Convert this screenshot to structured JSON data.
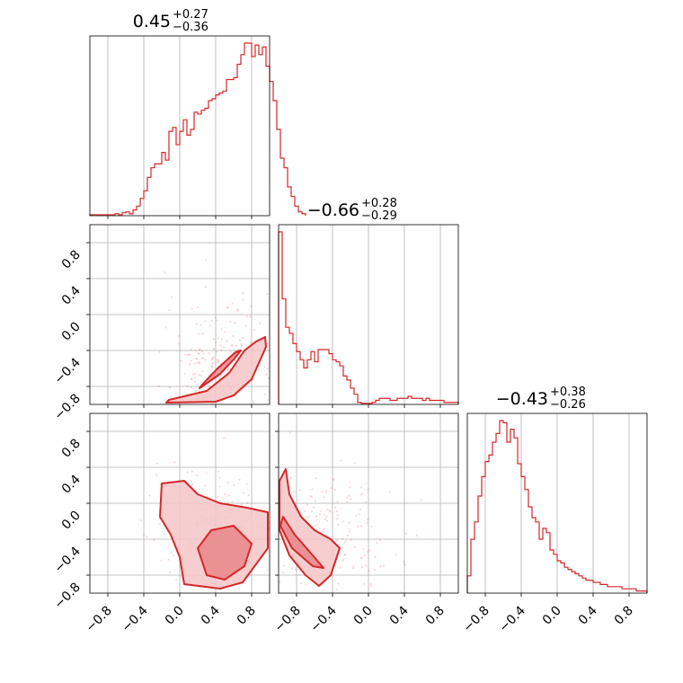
{
  "chart_data": {
    "type": "corner",
    "color": "#d62728",
    "grid": true,
    "axis_range": [
      -1.0,
      1.0
    ],
    "ticks": [
      -0.8,
      -0.4,
      0.0,
      0.4,
      0.8
    ],
    "tick_labels": [
      "−0.8",
      "−0.4",
      "0.0",
      "0.4",
      "0.8"
    ],
    "parameters": [
      {
        "title_value": "0.45",
        "title_plus": "+0.27",
        "title_minus": "−0.36",
        "histogram": {
          "bin_start": -1.0,
          "bin_width": 0.04,
          "counts": [
            0.5,
            0.5,
            0.5,
            0.5,
            0.5,
            0.5,
            0.5,
            1,
            0.5,
            1.5,
            2,
            1,
            3,
            5,
            9,
            13,
            20,
            25,
            27,
            27,
            33,
            29,
            44,
            46,
            37,
            44,
            50,
            42,
            45,
            54,
            53,
            55,
            56,
            60,
            61,
            63,
            64,
            65,
            71,
            71,
            72,
            79,
            84,
            90,
            90,
            83,
            89,
            84,
            88,
            78,
            70,
            60,
            45,
            30,
            25,
            15,
            10,
            5,
            2,
            1
          ]
        }
      },
      {
        "title_value": "−0.66",
        "title_plus": "+0.28",
        "title_minus": "−0.29",
        "histogram": {
          "bin_start": -1.0,
          "bin_width": 0.04,
          "counts": [
            85,
            52,
            38,
            35,
            30,
            26,
            22,
            18,
            22,
            26,
            21,
            27,
            27,
            27,
            25,
            22,
            21,
            19,
            14,
            12,
            8,
            5,
            1,
            0.5,
            0.5,
            0.5,
            1,
            2,
            3,
            3,
            3,
            2,
            2,
            3,
            3,
            3,
            4,
            3,
            3,
            3,
            2,
            3,
            2,
            2,
            2,
            2,
            1,
            1,
            1,
            1
          ]
        }
      },
      {
        "title_value": "−0.43",
        "title_plus": "+0.38",
        "title_minus": "−0.26",
        "histogram": {
          "bin_start": -1.0,
          "bin_width": 0.04,
          "counts": [
            8,
            25,
            33,
            45,
            54,
            61,
            64,
            70,
            74,
            80,
            79,
            70,
            76,
            72,
            60,
            54,
            48,
            40,
            35,
            33,
            25,
            30,
            28,
            20,
            18,
            15,
            14,
            12,
            11,
            10,
            9,
            8,
            7,
            6,
            6,
            5,
            5,
            4,
            4,
            3,
            3,
            3,
            3,
            2,
            2,
            2,
            2,
            1,
            1,
            1
          ]
        }
      }
    ],
    "pairs": [
      {
        "x_param": 0,
        "y_param": 1,
        "inner": [
          [
            0.22,
            -0.82
          ],
          [
            0.45,
            -0.66
          ],
          [
            0.6,
            -0.5
          ],
          [
            0.68,
            -0.4
          ],
          [
            0.62,
            -0.42
          ],
          [
            0.42,
            -0.6
          ],
          [
            0.25,
            -0.78
          ]
        ],
        "outer": [
          [
            -0.12,
            -0.95
          ],
          [
            0.3,
            -0.85
          ],
          [
            0.55,
            -0.65
          ],
          [
            0.72,
            -0.4
          ],
          [
            0.85,
            -0.3
          ],
          [
            0.95,
            -0.25
          ],
          [
            0.96,
            -0.36
          ],
          [
            0.8,
            -0.72
          ],
          [
            0.6,
            -0.9
          ],
          [
            0.4,
            -0.97
          ],
          [
            -0.15,
            -0.98
          ]
        ],
        "scatter_center": [
          0.45,
          -0.55
        ],
        "scatter_spread": [
          0.3,
          0.35
        ]
      },
      {
        "x_param": 0,
        "y_param": 2,
        "inner": [
          [
            0.3,
            -0.8
          ],
          [
            0.2,
            -0.5
          ],
          [
            0.35,
            -0.3
          ],
          [
            0.6,
            -0.25
          ],
          [
            0.8,
            -0.45
          ],
          [
            0.72,
            -0.7
          ],
          [
            0.5,
            -0.85
          ]
        ],
        "outer": [
          [
            -0.22,
            -0.15
          ],
          [
            -0.2,
            0.22
          ],
          [
            0.05,
            0.25
          ],
          [
            0.2,
            0.1
          ],
          [
            0.45,
            0.0
          ],
          [
            0.75,
            -0.05
          ],
          [
            0.98,
            -0.1
          ],
          [
            0.98,
            -0.5
          ],
          [
            0.7,
            -0.88
          ],
          [
            0.45,
            -0.95
          ],
          [
            0.05,
            -0.9
          ],
          [
            0.0,
            -0.6
          ],
          [
            -0.1,
            -0.35
          ]
        ],
        "scatter_center": [
          0.4,
          -0.35
        ],
        "scatter_spread": [
          0.35,
          0.35
        ]
      },
      {
        "x_param": 1,
        "y_param": 2,
        "inner": [
          [
            -0.95,
            -0.15
          ],
          [
            -0.82,
            -0.35
          ],
          [
            -0.62,
            -0.58
          ],
          [
            -0.5,
            -0.72
          ],
          [
            -0.62,
            -0.7
          ],
          [
            -0.85,
            -0.5
          ],
          [
            -0.98,
            -0.25
          ]
        ],
        "outer": [
          [
            -0.99,
            0.25
          ],
          [
            -0.92,
            0.38
          ],
          [
            -0.88,
            0.1
          ],
          [
            -0.75,
            -0.15
          ],
          [
            -0.6,
            -0.3
          ],
          [
            -0.42,
            -0.4
          ],
          [
            -0.32,
            -0.5
          ],
          [
            -0.42,
            -0.8
          ],
          [
            -0.55,
            -0.92
          ],
          [
            -0.7,
            -0.8
          ],
          [
            -0.88,
            -0.58
          ],
          [
            -0.99,
            -0.3
          ]
        ],
        "scatter_center": [
          -0.5,
          -0.35
        ],
        "scatter_spread": [
          0.4,
          0.4
        ]
      }
    ]
  }
}
